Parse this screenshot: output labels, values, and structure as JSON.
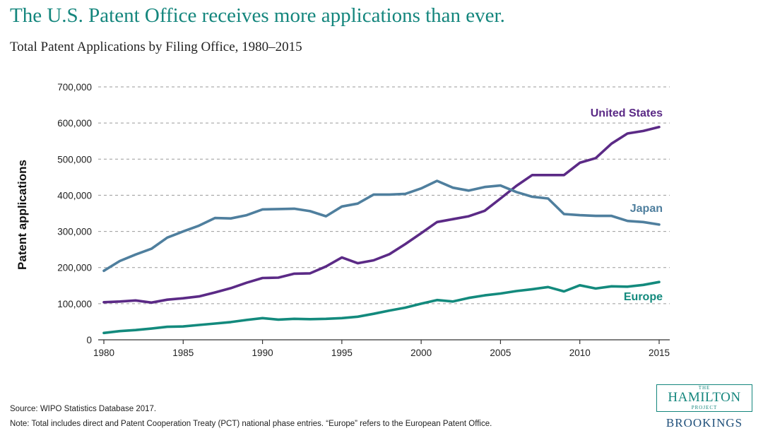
{
  "header": {
    "title": "The U.S. Patent Office receives more applications than ever.",
    "subtitle": "Total Patent Applications by Filing Office, 1980–2015"
  },
  "footer": {
    "source": "Source: WIPO Statistics Database 2017.",
    "note": "Note: Total includes direct and Patent Cooperation Treaty (PCT) national phase entries. “Europe” refers to the European Patent Office."
  },
  "logo": {
    "the": "THE",
    "hamilton": "HAMILTON",
    "project": "PROJECT",
    "brookings": "BROOKINGS"
  },
  "chart_data": {
    "type": "line",
    "title": "The U.S. Patent Office receives more applications than ever.",
    "subtitle": "Total Patent Applications by Filing Office, 1980–2015",
    "xlabel": "",
    "ylabel": "Patent applications",
    "xlim": [
      1980,
      2015
    ],
    "ylim": [
      0,
      700000
    ],
    "x_ticks": [
      1980,
      1985,
      1990,
      1995,
      2000,
      2005,
      2010,
      2015
    ],
    "y_ticks": [
      0,
      100000,
      200000,
      300000,
      400000,
      500000,
      600000,
      700000
    ],
    "y_tick_labels": [
      "0",
      "100,000",
      "200,000",
      "300,000",
      "400,000",
      "500,000",
      "600,000",
      "700,000"
    ],
    "grid": "horizontal-dashed",
    "legend": "direct labels",
    "x": [
      1980,
      1981,
      1982,
      1983,
      1984,
      1985,
      1986,
      1987,
      1988,
      1989,
      1990,
      1991,
      1992,
      1993,
      1994,
      1995,
      1996,
      1997,
      1998,
      1999,
      2000,
      2001,
      2002,
      2003,
      2004,
      2005,
      2006,
      2007,
      2008,
      2009,
      2010,
      2011,
      2012,
      2013,
      2014,
      2015
    ],
    "series": [
      {
        "name": "United States",
        "color": "#5b2a86",
        "values": [
          104000,
          106000,
          109000,
          103000,
          111000,
          115000,
          120000,
          131000,
          143000,
          158000,
          171000,
          172000,
          183000,
          184000,
          203000,
          228000,
          212000,
          220000,
          237000,
          265000,
          295000,
          326000,
          334000,
          342000,
          357000,
          391000,
          426000,
          456000,
          456000,
          456000,
          490000,
          503000,
          543000,
          571000,
          578000,
          589000
        ]
      },
      {
        "name": "Japan",
        "color": "#4f7f9e",
        "values": [
          191000,
          218000,
          236000,
          252000,
          283000,
          300000,
          316000,
          337000,
          336000,
          345000,
          361000,
          362000,
          363000,
          356000,
          342000,
          369000,
          377000,
          402000,
          402000,
          404000,
          419000,
          440000,
          421000,
          413000,
          423000,
          427000,
          409000,
          396000,
          391000,
          348000,
          345000,
          343000,
          343000,
          329000,
          326000,
          319000
        ]
      },
      {
        "name": "Europe",
        "color": "#138a7d",
        "values": [
          19000,
          24000,
          27000,
          31000,
          36000,
          37000,
          41000,
          45000,
          49000,
          55000,
          60000,
          56000,
          58000,
          57000,
          58000,
          60000,
          64000,
          72000,
          81000,
          89000,
          100000,
          110000,
          106000,
          116000,
          123000,
          128000,
          135000,
          140000,
          146000,
          134000,
          151000,
          142000,
          148000,
          147000,
          152000,
          160000
        ]
      }
    ]
  }
}
